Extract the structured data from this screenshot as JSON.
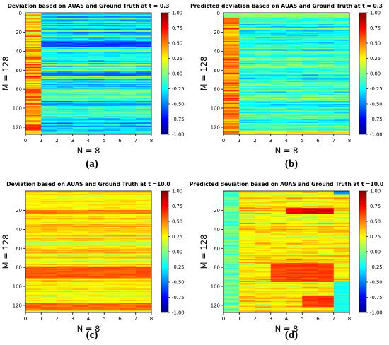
{
  "chart_data": [
    {
      "type": "heatmap",
      "panel_label": "(a)",
      "title": "Deviation based on AUAS and Ground Truth at t = 0.3",
      "xlabel": "N = 8",
      "ylabel": "M = 128",
      "xticks": [
        "0",
        "1",
        "2",
        "3",
        "4",
        "5",
        "6",
        "7",
        "8"
      ],
      "yticks": [
        "0",
        "20",
        "40",
        "60",
        "80",
        "100",
        "120"
      ],
      "colorbar_ticks": [
        "1.00",
        "0.75",
        "0.50",
        "0.25",
        "0.00",
        "-0.25",
        "-0.50",
        "-0.75",
        "-1.00"
      ],
      "xlim": [
        0,
        8
      ],
      "ylim": [
        128,
        0
      ],
      "vlim": [
        -1,
        1
      ],
      "colormap": "jet",
      "grid": false,
      "pattern": {
        "col0_mean": 0.42,
        "rest_mean": -0.22,
        "row_spread": 0.3,
        "cell_noise": 0.1,
        "seed": 11,
        "bands": [
          {
            "rows": [
              30,
              36
            ],
            "cols": [
              1,
              8
            ],
            "value": -0.62
          },
          {
            "rows": [
              63,
              67
            ],
            "cols": [
              1,
              8
            ],
            "value": -0.55
          },
          {
            "rows": [
              95,
              98
            ],
            "cols": [
              1,
              8
            ],
            "value": -0.45
          },
          {
            "rows": [
              118,
              124
            ],
            "cols": [
              0,
              1
            ],
            "value": 0.68
          },
          {
            "rows": [
              46,
              49
            ],
            "cols": [
              0,
              1
            ],
            "value": 0.6
          },
          {
            "rows": [
              80,
              83
            ],
            "cols": [
              0,
              1
            ],
            "value": 0.6
          }
        ]
      }
    },
    {
      "type": "heatmap",
      "panel_label": "(b)",
      "title": "Predicted deviation based on AUAS and Ground Truth at t = 0.3",
      "xlabel": "N = 8",
      "ylabel": "M = 128",
      "xticks": [
        "0",
        "1",
        "2",
        "3",
        "4",
        "5",
        "6",
        "7",
        "8"
      ],
      "yticks": [
        "0",
        "20",
        "40",
        "60",
        "80",
        "100",
        "120"
      ],
      "colorbar_ticks": [
        "1.00",
        "0.75",
        "0.50",
        "0.25",
        "0.00",
        "-0.25",
        "-0.50",
        "-0.75",
        "-1.00"
      ],
      "xlim": [
        0,
        8
      ],
      "ylim": [
        128,
        0
      ],
      "vlim": [
        -1,
        1
      ],
      "colormap": "jet",
      "grid": false,
      "pattern": {
        "col0_mean": 0.48,
        "rest_mean": -0.16,
        "row_spread": 0.2,
        "cell_noise": 0.1,
        "seed": 23,
        "bands": [
          {
            "rows": [
              0,
              5
            ],
            "cols": [
              0,
              8
            ],
            "value": 0.05
          },
          {
            "rows": [
              124,
              128
            ],
            "cols": [
              1,
              8
            ],
            "value": 0.3
          }
        ]
      }
    },
    {
      "type": "heatmap",
      "panel_label": "(c)",
      "title": "Deviation based on AUAS and Ground Truth at t =10.0",
      "xlabel": "N = 8",
      "ylabel": "M = 128",
      "xticks": [
        "0",
        "1",
        "2",
        "3",
        "4",
        "5",
        "6",
        "7",
        "8"
      ],
      "yticks": [
        "20",
        "40",
        "60",
        "80",
        "100",
        "120"
      ],
      "colorbar_ticks": [
        "1.00",
        "0.75",
        "0.50",
        "0.25",
        "0.00",
        "-0.25",
        "-0.50",
        "-0.75",
        "-1.00"
      ],
      "xlim": [
        0,
        8
      ],
      "ylim": [
        128,
        0
      ],
      "vlim": [
        -1,
        1
      ],
      "colormap": "jet",
      "grid": false,
      "pattern": {
        "col0_mean": 0.3,
        "rest_mean": 0.3,
        "row_spread": 0.15,
        "cell_noise": 0.06,
        "seed": 37,
        "bands": [
          {
            "rows": [
              20,
              24
            ],
            "cols": [
              0,
              8
            ],
            "value": 0.5
          },
          {
            "rows": [
              80,
              92
            ],
            "cols": [
              0,
              8
            ],
            "value": 0.58
          },
          {
            "rows": [
              118,
              126
            ],
            "cols": [
              0,
              8
            ],
            "value": 0.55
          },
          {
            "rows": [
              54,
              58
            ],
            "cols": [
              0,
              8
            ],
            "value": 0.12
          }
        ]
      }
    },
    {
      "type": "heatmap",
      "panel_label": "(d)",
      "title": "Predicted deviation based on AUAS and Ground Truth at t =10.0",
      "xlabel": "N = 8",
      "ylabel": "M = 128",
      "xticks": [
        "0",
        "1",
        "2",
        "3",
        "4",
        "5",
        "6",
        "7",
        "8"
      ],
      "yticks": [
        "20",
        "40",
        "60",
        "80",
        "100",
        "120"
      ],
      "colorbar_ticks": [
        "1.00",
        "0.75",
        "0.50",
        "0.25",
        "0.00",
        "-0.25",
        "-0.50",
        "-0.75",
        "-1.00"
      ],
      "xlim": [
        0,
        8
      ],
      "ylim": [
        128,
        0
      ],
      "vlim": [
        -1,
        1
      ],
      "colormap": "jet",
      "grid": false,
      "pattern": {
        "col0_mean": -0.05,
        "rest_mean": 0.3,
        "row_spread": 0.14,
        "cell_noise": 0.1,
        "seed": 53,
        "bands": [
          {
            "rows": [
              0,
              4
            ],
            "cols": [
              7,
              8
            ],
            "value": -0.5
          },
          {
            "rows": [
              18,
              24
            ],
            "cols": [
              4,
              7
            ],
            "value": 0.8
          },
          {
            "rows": [
              76,
              96
            ],
            "cols": [
              3,
              7
            ],
            "value": 0.62
          },
          {
            "rows": [
              110,
              122
            ],
            "cols": [
              5,
              7
            ],
            "value": 0.65
          },
          {
            "rows": [
              95,
              128
            ],
            "cols": [
              7,
              8
            ],
            "value": -0.2
          }
        ]
      }
    }
  ]
}
